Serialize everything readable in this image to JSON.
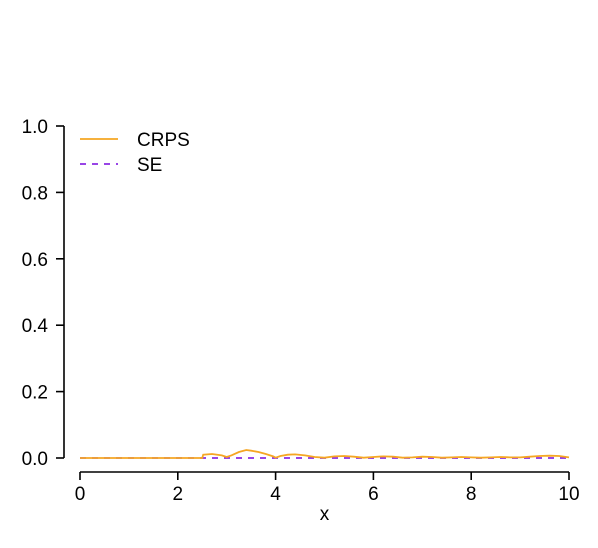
{
  "chart_data": {
    "type": "line",
    "title": "",
    "xlabel": "x",
    "ylabel": "",
    "xlim": [
      0,
      10
    ],
    "ylim": [
      0,
      1
    ],
    "x_ticks": [
      0,
      2,
      4,
      6,
      8,
      10
    ],
    "x_tick_labels": [
      "0",
      "2",
      "4",
      "6",
      "8",
      "10"
    ],
    "y_ticks": [
      0,
      0.2,
      0.4,
      0.6,
      0.8,
      1.0
    ],
    "y_tick_labels": [
      "0.0",
      "0.2",
      "0.4",
      "0.6",
      "0.8",
      "1.0"
    ],
    "grid": false,
    "legend_position": "top-left",
    "series": [
      {
        "name": "CRPS",
        "color": "#f5a623",
        "dash": "solid",
        "x": [
          0,
          0.5,
          1,
          1.5,
          2,
          2.4,
          2.5,
          2.52,
          2.7,
          2.9,
          3.0,
          3.1,
          3.25,
          3.4,
          3.5,
          3.65,
          3.8,
          3.95,
          4.0,
          4.1,
          4.25,
          4.4,
          4.6,
          4.8,
          5.0,
          5.2,
          5.4,
          5.6,
          5.8,
          6.0,
          6.2,
          6.4,
          6.6,
          6.8,
          7.0,
          7.2,
          7.4,
          7.6,
          7.8,
          8.0,
          8.2,
          8.4,
          8.6,
          8.8,
          9.0,
          9.2,
          9.4,
          9.6,
          9.8,
          10.0
        ],
        "values": [
          0,
          0,
          0,
          0,
          0,
          0,
          0,
          0.01,
          0.012,
          0.008,
          0.003,
          0.008,
          0.018,
          0.024,
          0.022,
          0.018,
          0.012,
          0.005,
          0.001,
          0.006,
          0.01,
          0.011,
          0.008,
          0.003,
          0.001,
          0.005,
          0.006,
          0.004,
          0.001,
          0.003,
          0.005,
          0.004,
          0.001,
          0.002,
          0.004,
          0.003,
          0.001,
          0.002,
          0.003,
          0.002,
          0.001,
          0.002,
          0.003,
          0.002,
          0.002,
          0.004,
          0.006,
          0.007,
          0.006,
          0.002
        ]
      },
      {
        "name": "SE",
        "color": "#8a2be2",
        "dash": "dashed",
        "x": [
          0,
          10
        ],
        "values": [
          0,
          0
        ]
      }
    ]
  }
}
